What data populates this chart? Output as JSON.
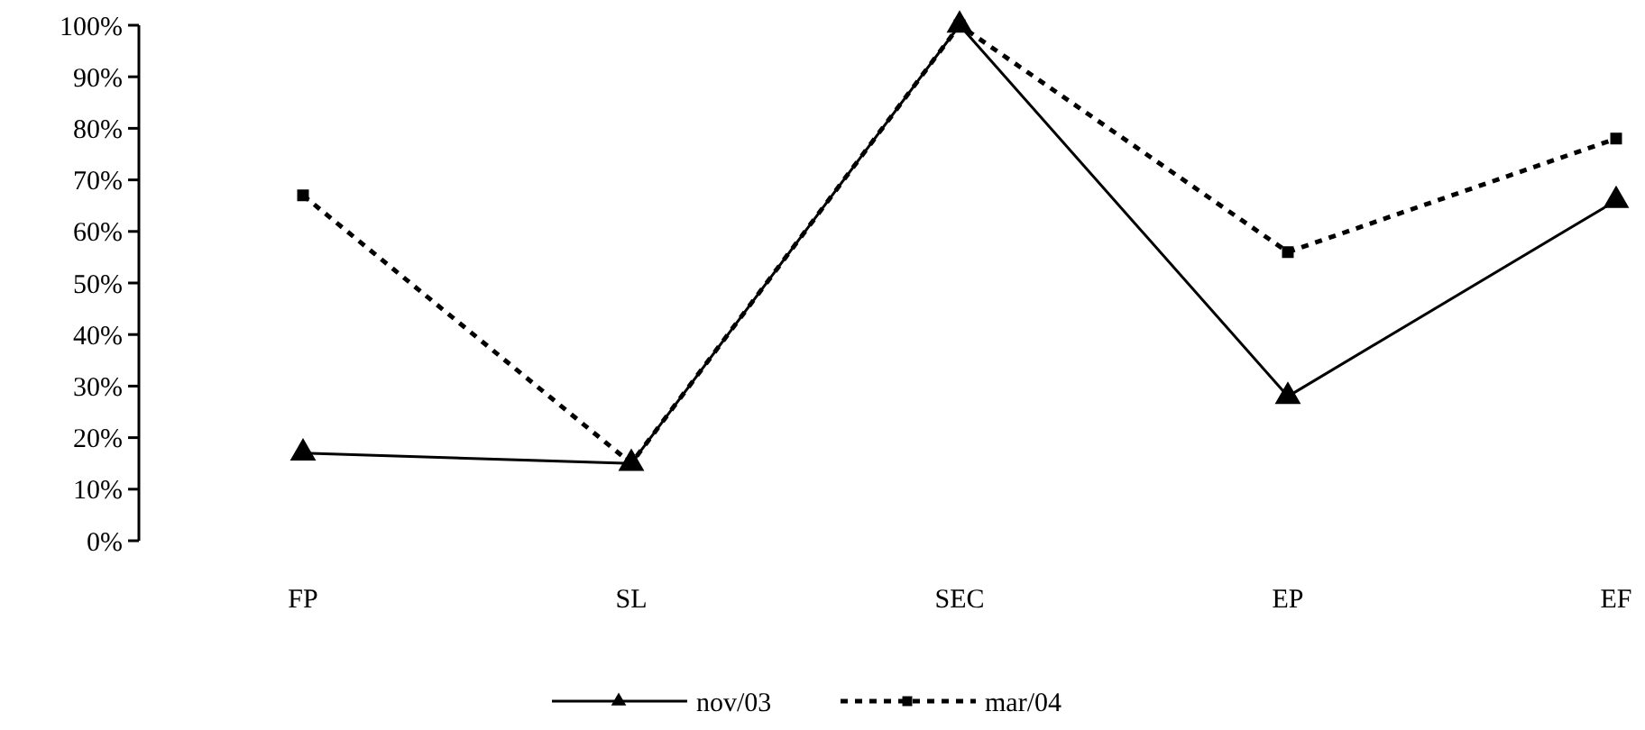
{
  "chart_data": {
    "type": "line",
    "categories": [
      "FP",
      "SL",
      "SEC",
      "EP",
      "EF"
    ],
    "series": [
      {
        "name": "nov/03",
        "color": "#000000",
        "marker": "triangle",
        "line_style": "solid",
        "values": [
          17,
          15,
          100,
          28,
          66
        ]
      },
      {
        "name": "mar/04",
        "color": "#000000",
        "marker": "square",
        "line_style": "dashed",
        "values": [
          67,
          15,
          100,
          56,
          78
        ]
      }
    ],
    "ylim": [
      0,
      100
    ],
    "yticks": [
      {
        "value": 0,
        "label": "0%"
      },
      {
        "value": 10,
        "label": "10%"
      },
      {
        "value": 20,
        "label": "20%"
      },
      {
        "value": 30,
        "label": "30%"
      },
      {
        "value": 40,
        "label": "40%"
      },
      {
        "value": 50,
        "label": "50%"
      },
      {
        "value": 60,
        "label": "60%"
      },
      {
        "value": 70,
        "label": "70%"
      },
      {
        "value": 80,
        "label": "80%"
      },
      {
        "value": 90,
        "label": "90%"
      },
      {
        "value": 100,
        "label": "100%"
      }
    ],
    "grid": false,
    "legend": "bottom"
  }
}
